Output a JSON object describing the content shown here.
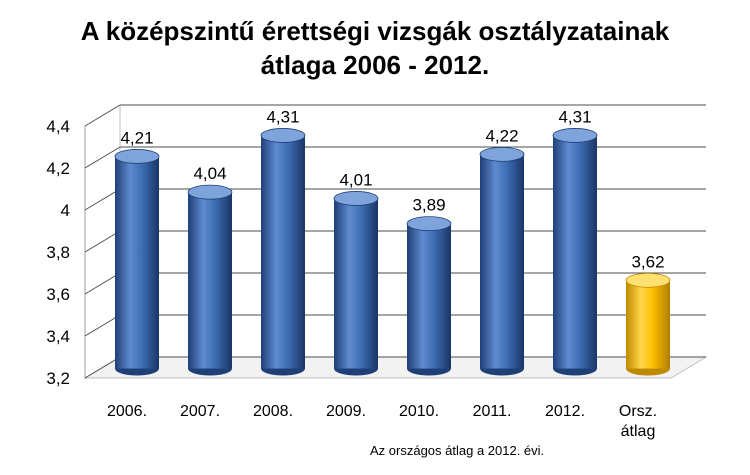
{
  "chart_data": {
    "type": "bar",
    "title_lines": [
      "A középszintű érettségi vizsgák osztályzatainak",
      "átlaga 2006 - 2012."
    ],
    "categories": [
      [
        "2006."
      ],
      [
        "2007."
      ],
      [
        "2008."
      ],
      [
        "2009."
      ],
      [
        "2010."
      ],
      [
        "2011."
      ],
      [
        "2012."
      ],
      [
        "Orsz.",
        "átlag"
      ]
    ],
    "values": [
      4.21,
      4.04,
      4.31,
      4.01,
      3.89,
      4.22,
      4.31,
      3.62
    ],
    "data_labels": [
      "4,21",
      "4,04",
      "4,31",
      "4,01",
      "3,89",
      "4,22",
      "4,31",
      "3,62"
    ],
    "y_ticks": [
      "3,2",
      "3,4",
      "3,6",
      "3,8",
      "4",
      "4,2",
      "4,4"
    ],
    "y_tick_values": [
      3.2,
      3.4,
      3.6,
      3.8,
      4.0,
      4.2,
      4.4
    ],
    "ylim": [
      3.2,
      4.4
    ],
    "grid": true,
    "three_d": true,
    "colors": {
      "regular": "#3f6fb5",
      "regular_dark": "#1f3f77",
      "regular_light": "#7fa4dc",
      "highlight": "#ffc000",
      "highlight_dark": "#c08a00",
      "highlight_light": "#ffe070"
    },
    "highlight_index": 7,
    "footnote": "Az országos átlag a 2012. évi."
  }
}
